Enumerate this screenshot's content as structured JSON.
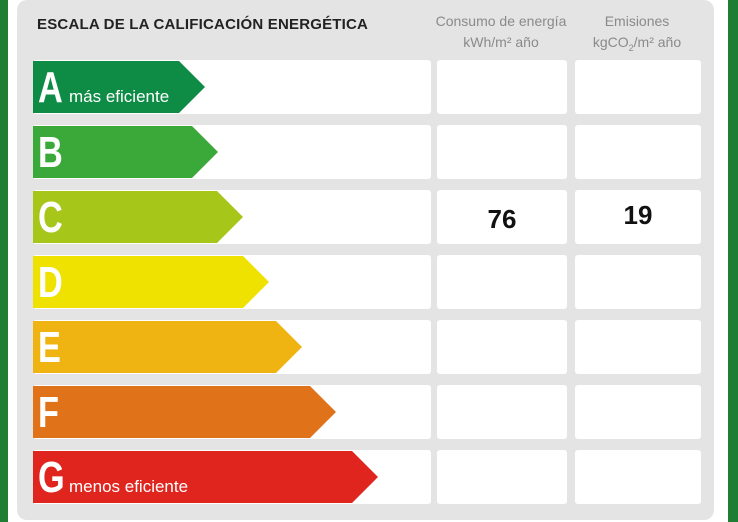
{
  "title": "ESCALA DE LA CALIFICACIÓN ENERGÉTICA",
  "columns": {
    "energy": {
      "line1": "Consumo de energía",
      "line2": "kWh/m² año"
    },
    "emissions": {
      "line1": "Emisiones",
      "line2_pre": "kgCO",
      "line2_sub": "2",
      "line2_post": "/m² año"
    }
  },
  "ratings": [
    {
      "letter": "A",
      "label": "más eficiente",
      "color": "#0e8c45",
      "energy": "",
      "emissions": ""
    },
    {
      "letter": "B",
      "label": "",
      "color": "#3aa93a",
      "energy": "",
      "emissions": ""
    },
    {
      "letter": "C",
      "label": "",
      "color": "#a6c71a",
      "energy": "76",
      "emissions": "19"
    },
    {
      "letter": "D",
      "label": "",
      "color": "#efe200",
      "energy": "",
      "emissions": ""
    },
    {
      "letter": "E",
      "label": "",
      "color": "#f0b412",
      "energy": "",
      "emissions": ""
    },
    {
      "letter": "F",
      "label": "",
      "color": "#e0731a",
      "energy": "",
      "emissions": ""
    },
    {
      "letter": "G",
      "label": "menos eficiente",
      "color": "#e0251e",
      "energy": "",
      "emissions": ""
    }
  ]
}
